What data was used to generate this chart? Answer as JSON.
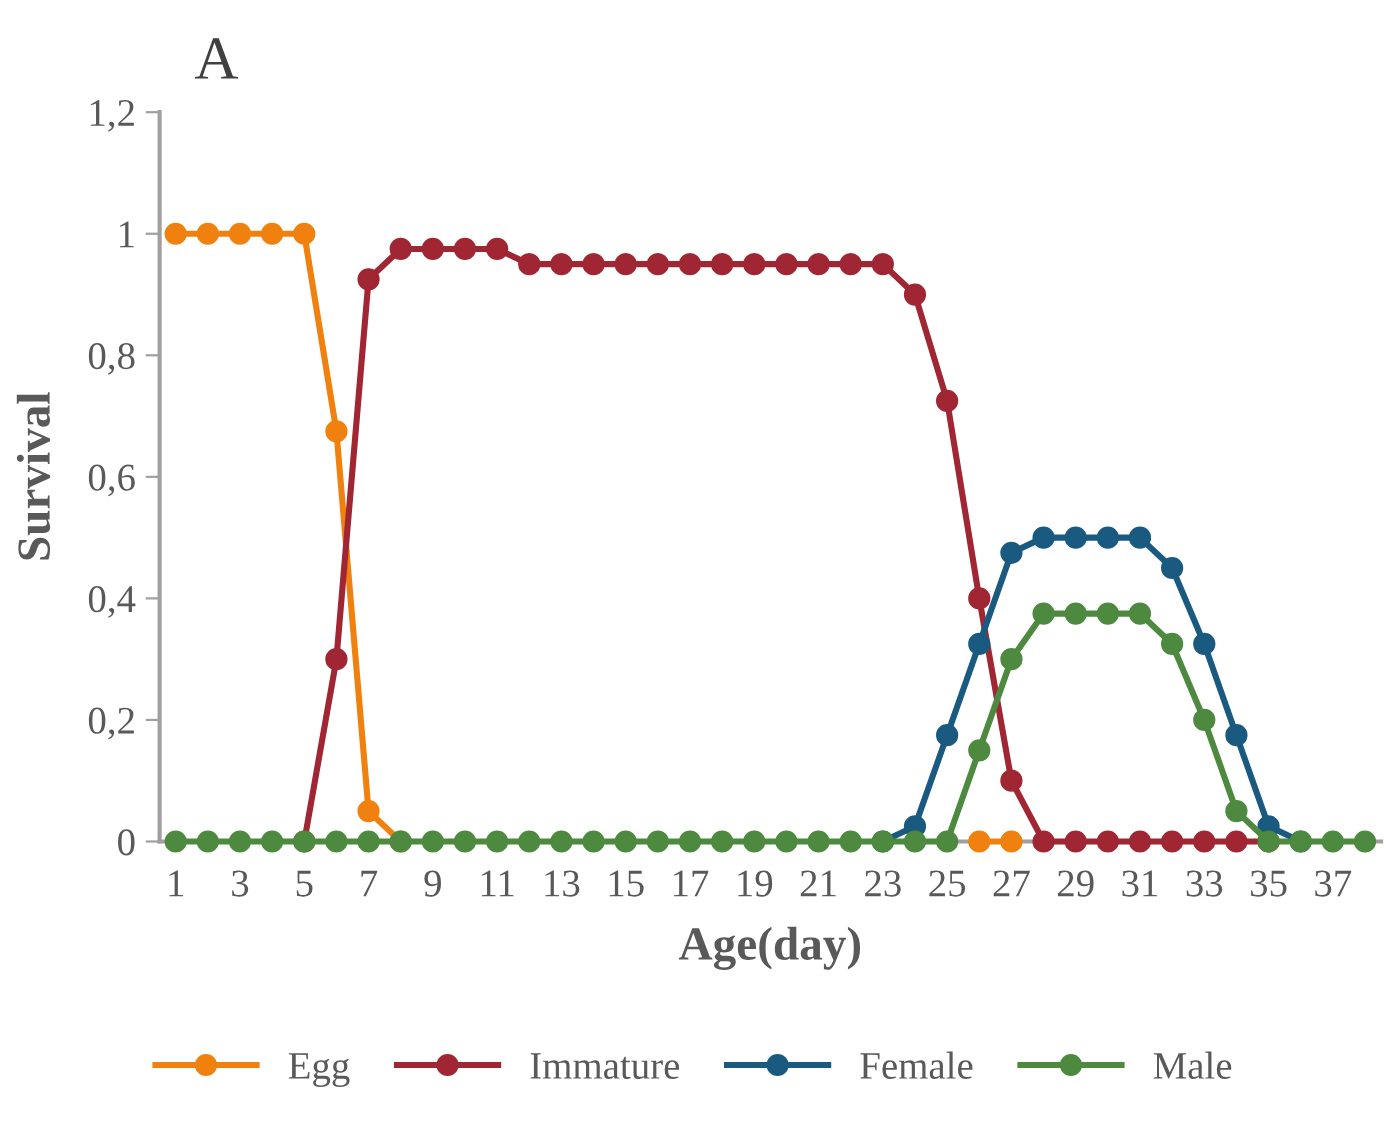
{
  "chart_data": {
    "type": "line",
    "xlabel": "Age(day)",
    "ylabel": "Survival",
    "annotations": [
      "A"
    ],
    "categories": [
      "1",
      null,
      "3",
      null,
      "5",
      null,
      "7",
      null,
      "9",
      null,
      "11",
      null,
      "13",
      null,
      "15",
      null,
      "17",
      null,
      "19",
      null,
      "21",
      null,
      "23",
      null,
      "25",
      null,
      "27",
      null,
      "29",
      null,
      "31",
      null,
      "33",
      null,
      "35",
      null,
      "37",
      null
    ],
    "ylim": [
      0,
      1.2
    ],
    "yticks": [
      0,
      {
        "value": 0.2,
        "label": "0,2"
      },
      {
        "value": 0.4,
        "label": "0,4"
      },
      {
        "value": 0.6,
        "label": "0,6"
      },
      {
        "value": 0.8,
        "label": "0,8"
      },
      1,
      {
        "value": 1.2,
        "label": "1,2"
      }
    ],
    "grid": false,
    "legend": "bottom",
    "marker": "circle",
    "line_style": "solid",
    "series": [
      {
        "name": "Egg",
        "color": "#f0810f",
        "values": [
          1,
          1,
          1,
          1,
          1,
          0.675,
          0.05,
          0,
          null,
          null,
          null,
          null,
          null,
          null,
          null,
          null,
          null,
          null,
          null,
          null,
          null,
          null,
          null,
          null,
          null,
          0,
          0,
          null,
          null,
          null,
          null,
          null,
          null,
          null,
          null,
          null,
          null,
          null
        ]
      },
      {
        "name": "Immature",
        "color": "#a02634",
        "values": [
          null,
          null,
          null,
          null,
          0,
          0.3,
          0.925,
          0.975,
          0.975,
          0.975,
          0.975,
          0.95,
          0.95,
          0.95,
          0.95,
          0.95,
          0.95,
          0.95,
          0.95,
          0.95,
          0.95,
          0.95,
          0.95,
          0.9,
          0.725,
          0.4,
          0.1,
          0,
          0,
          0,
          0,
          0,
          0,
          0,
          0,
          null,
          null,
          null
        ]
      },
      {
        "name": "Female",
        "color": "#1a5a80",
        "values": [
          null,
          null,
          null,
          null,
          null,
          null,
          null,
          null,
          null,
          null,
          null,
          null,
          null,
          null,
          null,
          null,
          null,
          null,
          null,
          null,
          null,
          null,
          0,
          0.025,
          0.175,
          0.325,
          0.475,
          0.5,
          0.5,
          0.5,
          0.5,
          0.45,
          0.325,
          0.175,
          0.025,
          0,
          null,
          null
        ]
      },
      {
        "name": "Male",
        "color": "#4d8a3f",
        "values": [
          0,
          0,
          0,
          0,
          0,
          0,
          0,
          0,
          0,
          0,
          0,
          0,
          0,
          0,
          0,
          0,
          0,
          0,
          0,
          0,
          0,
          0,
          0,
          0,
          0,
          0.15,
          0.3,
          0.375,
          0.375,
          0.375,
          0.375,
          0.325,
          0.2,
          0.05,
          0,
          0,
          0,
          0
        ]
      }
    ]
  }
}
